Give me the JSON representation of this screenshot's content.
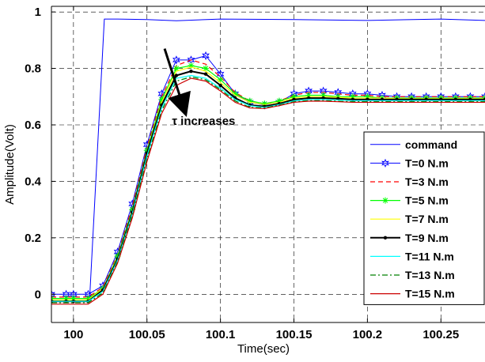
{
  "chart_data": {
    "type": "line",
    "xlabel": "Time(sec)",
    "ylabel": "Amplitude(Volt)",
    "xlim": [
      99.985,
      100.28
    ],
    "ylim": [
      -0.1,
      1.02
    ],
    "x_ticks": [
      100,
      100.05,
      100.1,
      100.15,
      100.2,
      100.25
    ],
    "x_tick_labels": [
      "100",
      "100.05",
      "100.1",
      "100.15",
      "100.2",
      "100.25"
    ],
    "y_ticks": [
      0,
      0.2,
      0.4,
      0.6,
      0.8,
      1
    ],
    "y_tick_labels": [
      "0",
      "0.2",
      "0.4",
      "0.6",
      "0.8",
      "1"
    ],
    "grid": true,
    "legend_position": "bottom-right",
    "annotation": {
      "text": "τ increases",
      "arrow_from": [
        100.062,
        0.87
      ],
      "arrow_to": [
        100.075,
        0.66
      ],
      "text_at": [
        100.067,
        0.6
      ]
    },
    "series": [
      {
        "name": "command",
        "color": "#0000ff",
        "style": "solid",
        "marker": "none",
        "width": 1,
        "x": [
          99.985,
          100.011,
          100.021,
          100.03,
          100.05,
          100.07,
          100.1,
          100.15,
          100.2,
          100.25,
          100.28
        ],
        "y": [
          -0.015,
          -0.015,
          0.975,
          0.975,
          0.973,
          0.969,
          0.975,
          0.973,
          0.97,
          0.975,
          0.97
        ]
      },
      {
        "name": "T=0 N.m",
        "color": "#0000ff",
        "style": "solid",
        "marker": "star",
        "width": 1,
        "x": [
          99.985,
          99.995,
          100.0,
          100.01,
          100.02,
          100.03,
          100.04,
          100.05,
          100.06,
          100.07,
          100.08,
          100.09,
          100.1,
          100.11,
          100.12,
          100.13,
          100.14,
          100.15,
          100.16,
          100.17,
          100.18,
          100.19,
          100.2,
          100.21,
          100.22,
          100.23,
          100.24,
          100.25,
          100.26,
          100.27,
          100.28
        ],
        "y": [
          0.0,
          0.0,
          0.0,
          0.0,
          0.03,
          0.15,
          0.32,
          0.53,
          0.71,
          0.83,
          0.83,
          0.845,
          0.78,
          0.71,
          0.68,
          0.67,
          0.68,
          0.71,
          0.72,
          0.72,
          0.715,
          0.71,
          0.71,
          0.705,
          0.7,
          0.7,
          0.7,
          0.7,
          0.7,
          0.7,
          0.7
        ]
      },
      {
        "name": "T=3 N.m",
        "color": "#ff0000",
        "style": "dashed",
        "marker": "none",
        "width": 1.2,
        "x": [
          99.985,
          99.995,
          100.0,
          100.01,
          100.02,
          100.03,
          100.04,
          100.05,
          100.06,
          100.07,
          100.08,
          100.09,
          100.1,
          100.11,
          100.12,
          100.13,
          100.14,
          100.15,
          100.16,
          100.17,
          100.18,
          100.19,
          100.2,
          100.21,
          100.22,
          100.23,
          100.24,
          100.25,
          100.26,
          100.27,
          100.28
        ],
        "y": [
          -0.01,
          -0.01,
          -0.01,
          -0.01,
          0.025,
          0.14,
          0.31,
          0.52,
          0.7,
          0.81,
          0.83,
          0.815,
          0.77,
          0.715,
          0.685,
          0.675,
          0.685,
          0.705,
          0.715,
          0.715,
          0.71,
          0.705,
          0.705,
          0.7,
          0.7,
          0.7,
          0.7,
          0.7,
          0.7,
          0.7,
          0.7
        ]
      },
      {
        "name": "T=5 N.m",
        "color": "#00ff00",
        "style": "solid",
        "marker": "asterisk",
        "width": 1.2,
        "x": [
          99.985,
          99.995,
          100.0,
          100.01,
          100.02,
          100.03,
          100.04,
          100.05,
          100.06,
          100.07,
          100.08,
          100.09,
          100.1,
          100.11,
          100.12,
          100.13,
          100.14,
          100.15,
          100.16,
          100.17,
          100.18,
          100.19,
          100.2,
          100.21,
          100.22,
          100.23,
          100.24,
          100.25,
          100.26,
          100.27,
          100.28
        ],
        "y": [
          -0.015,
          -0.015,
          -0.015,
          -0.015,
          0.02,
          0.135,
          0.3,
          0.51,
          0.69,
          0.8,
          0.81,
          0.8,
          0.76,
          0.71,
          0.685,
          0.675,
          0.685,
          0.7,
          0.705,
          0.705,
          0.7,
          0.7,
          0.7,
          0.695,
          0.695,
          0.695,
          0.695,
          0.695,
          0.695,
          0.695,
          0.695
        ]
      },
      {
        "name": "T=7 N.m",
        "color": "#ffff00",
        "style": "solid",
        "marker": "none",
        "width": 1.2,
        "x": [
          99.985,
          99.995,
          100.0,
          100.01,
          100.02,
          100.03,
          100.04,
          100.05,
          100.06,
          100.07,
          100.08,
          100.09,
          100.1,
          100.11,
          100.12,
          100.13,
          100.14,
          100.15,
          100.16,
          100.17,
          100.18,
          100.19,
          100.2,
          100.21,
          100.22,
          100.23,
          100.24,
          100.25,
          100.26,
          100.27,
          100.28
        ],
        "y": [
          -0.02,
          -0.02,
          -0.02,
          -0.02,
          0.02,
          0.13,
          0.295,
          0.505,
          0.68,
          0.79,
          0.805,
          0.79,
          0.75,
          0.705,
          0.68,
          0.672,
          0.68,
          0.695,
          0.7,
          0.7,
          0.698,
          0.695,
          0.695,
          0.695,
          0.693,
          0.693,
          0.693,
          0.693,
          0.693,
          0.693,
          0.693
        ]
      },
      {
        "name": "T=9 N.m",
        "color": "#000000",
        "style": "solid",
        "marker": "dot",
        "width": 2,
        "x": [
          99.985,
          99.995,
          100.0,
          100.01,
          100.02,
          100.03,
          100.04,
          100.05,
          100.06,
          100.07,
          100.08,
          100.09,
          100.1,
          100.11,
          100.12,
          100.13,
          100.14,
          100.15,
          100.16,
          100.17,
          100.18,
          100.19,
          100.2,
          100.21,
          100.22,
          100.23,
          100.24,
          100.25,
          100.26,
          100.27,
          100.28
        ],
        "y": [
          -0.025,
          -0.025,
          -0.025,
          -0.025,
          0.015,
          0.125,
          0.29,
          0.5,
          0.67,
          0.775,
          0.79,
          0.78,
          0.74,
          0.695,
          0.67,
          0.665,
          0.675,
          0.69,
          0.695,
          0.695,
          0.693,
          0.69,
          0.69,
          0.69,
          0.69,
          0.69,
          0.69,
          0.69,
          0.69,
          0.69,
          0.69
        ]
      },
      {
        "name": "T=11 N.m",
        "color": "#00ffff",
        "style": "solid",
        "marker": "none",
        "width": 1.2,
        "x": [
          99.985,
          99.995,
          100.0,
          100.01,
          100.02,
          100.03,
          100.04,
          100.05,
          100.06,
          100.07,
          100.08,
          100.09,
          100.1,
          100.11,
          100.12,
          100.13,
          100.14,
          100.15,
          100.16,
          100.17,
          100.18,
          100.19,
          100.2,
          100.21,
          100.22,
          100.23,
          100.24,
          100.25,
          100.26,
          100.27,
          100.28
        ],
        "y": [
          -0.025,
          -0.025,
          -0.025,
          -0.025,
          0.01,
          0.12,
          0.285,
          0.49,
          0.66,
          0.765,
          0.775,
          0.765,
          0.73,
          0.69,
          0.668,
          0.662,
          0.672,
          0.685,
          0.69,
          0.69,
          0.688,
          0.686,
          0.686,
          0.686,
          0.686,
          0.686,
          0.686,
          0.686,
          0.686,
          0.686,
          0.686
        ]
      },
      {
        "name": "T=13 N.m",
        "color": "#008000",
        "style": "dashdot",
        "marker": "none",
        "width": 1.3,
        "x": [
          99.985,
          99.995,
          100.0,
          100.01,
          100.02,
          100.03,
          100.04,
          100.05,
          100.06,
          100.07,
          100.08,
          100.09,
          100.1,
          100.11,
          100.12,
          100.13,
          100.14,
          100.15,
          100.16,
          100.17,
          100.18,
          100.19,
          100.2,
          100.21,
          100.22,
          100.23,
          100.24,
          100.25,
          100.26,
          100.27,
          100.28
        ],
        "y": [
          -0.03,
          -0.03,
          -0.03,
          -0.03,
          0.005,
          0.115,
          0.28,
          0.48,
          0.65,
          0.755,
          0.77,
          0.76,
          0.725,
          0.685,
          0.662,
          0.66,
          0.67,
          0.682,
          0.686,
          0.686,
          0.684,
          0.682,
          0.682,
          0.682,
          0.682,
          0.682,
          0.682,
          0.682,
          0.682,
          0.682,
          0.682
        ]
      },
      {
        "name": "T=15 N.m",
        "color": "#cc0000",
        "style": "solid",
        "marker": "none",
        "width": 1.2,
        "x": [
          99.985,
          99.995,
          100.0,
          100.01,
          100.02,
          100.03,
          100.04,
          100.05,
          100.06,
          100.07,
          100.08,
          100.09,
          100.1,
          100.11,
          100.12,
          100.13,
          100.14,
          100.15,
          100.16,
          100.17,
          100.18,
          100.19,
          100.2,
          100.21,
          100.22,
          100.23,
          100.24,
          100.25,
          100.26,
          100.27,
          100.28
        ],
        "y": [
          -0.035,
          -0.035,
          -0.035,
          -0.035,
          0.0,
          0.11,
          0.27,
          0.47,
          0.64,
          0.74,
          0.765,
          0.755,
          0.72,
          0.68,
          0.66,
          0.658,
          0.668,
          0.68,
          0.684,
          0.684,
          0.682,
          0.68,
          0.68,
          0.68,
          0.68,
          0.68,
          0.68,
          0.68,
          0.68,
          0.68,
          0.68
        ]
      }
    ]
  }
}
